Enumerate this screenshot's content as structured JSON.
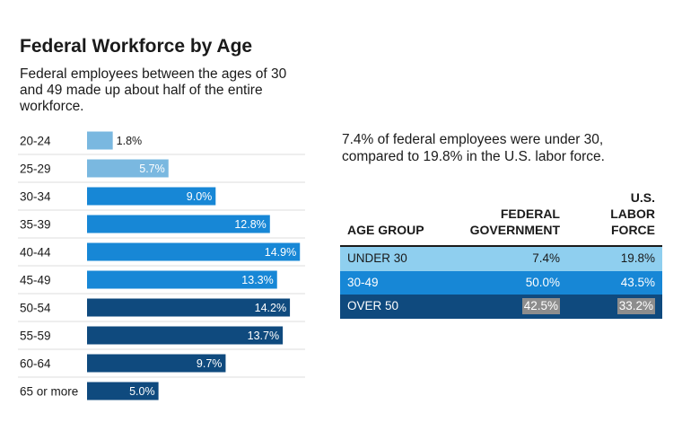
{
  "header": {
    "title": "Federal Workforce by Age",
    "subtitle": "Federal employees between the ages of 30 and 49 made up about half of the entire workforce."
  },
  "chart_data": {
    "type": "bar",
    "orientation": "horizontal",
    "categories": [
      "20-24",
      "25-29",
      "30-34",
      "35-39",
      "40-44",
      "45-49",
      "50-54",
      "55-59",
      "60-64",
      "65 or more"
    ],
    "values": [
      1.8,
      5.7,
      9.0,
      12.8,
      14.9,
      13.3,
      14.2,
      13.7,
      9.7,
      5.0
    ],
    "value_labels": [
      "1.8%",
      "5.7%",
      "9.0%",
      "12.8%",
      "14.9%",
      "13.3%",
      "14.2%",
      "13.7%",
      "9.7%",
      "5.0%"
    ],
    "bar_groups": [
      "under30",
      "under30",
      "30to49",
      "30to49",
      "30to49",
      "30to49",
      "over50",
      "over50",
      "over50",
      "over50"
    ],
    "colors": {
      "under30": "#7ab8e0",
      "30to49": "#1787d6",
      "over50": "#0f4a7e"
    },
    "xlim": [
      0,
      15.2
    ],
    "grid": false,
    "title": "Federal Workforce by Age",
    "xlabel": "",
    "ylabel": ""
  },
  "note": "7.4% of federal employees were under 30, compared to 19.8% in the U.S. labor force.",
  "table": {
    "headers": [
      "AGE GROUP",
      "FEDERAL GOVERNMENT",
      "U.S. LABOR FORCE"
    ],
    "rows": [
      {
        "group": "UNDER 30",
        "federal": "7.4%",
        "labor": "19.8%"
      },
      {
        "group": "30-49",
        "federal": "50.0%",
        "labor": "43.5%"
      },
      {
        "group": "OVER 50",
        "federal": "42.5%",
        "labor": "33.2%"
      }
    ],
    "colors": {
      "under30": "#8fcfef",
      "30to49": "#1787d6",
      "over50": "#0f4a7e"
    }
  }
}
